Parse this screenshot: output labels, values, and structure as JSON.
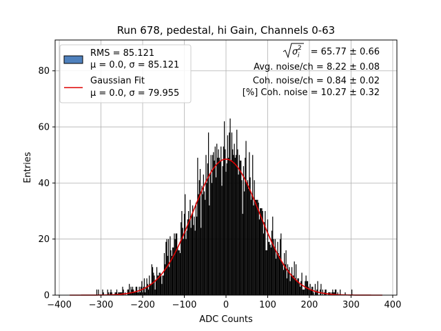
{
  "chart_data": {
    "type": "bar",
    "title": "Run 678, pedestal, hi Gain, Channels 0-63",
    "xlabel": "ADC Counts",
    "ylabel": "Entries",
    "xlim": [
      -410,
      410
    ],
    "ylim": [
      0,
      91
    ],
    "grid": true,
    "xticks": [
      -400,
      -300,
      -200,
      -100,
      0,
      100,
      200,
      300,
      400
    ],
    "yticks": [
      0,
      20,
      40,
      60,
      80
    ],
    "histogram": {
      "name": "RMS = 85.121",
      "label2": "μ = 0.0, σ = 85.121",
      "range": [
        -375,
        375
      ],
      "bin_width": 2,
      "mu": 0.0,
      "sigma": 85.121,
      "peak_entries": 50,
      "color": "#000000",
      "legend_color": "#4f81bd"
    },
    "fit": {
      "name": "Gaussian Fit",
      "label2": "μ = 0.0, σ = 79.955",
      "mu": 0.0,
      "sigma": 79.955,
      "amplitude": 48.5,
      "range": [
        -375,
        375
      ],
      "color": "#dd0000"
    },
    "legend_position": "top-left",
    "annotations": [
      " = 65.77 ± 0.66",
      "Avg. noise/ch = 8.22 ± 0.08",
      "Coh. noise/ch = 0.84 ± 0.02",
      "[%] Coh. noise = 10.27 ± 0.32"
    ]
  }
}
